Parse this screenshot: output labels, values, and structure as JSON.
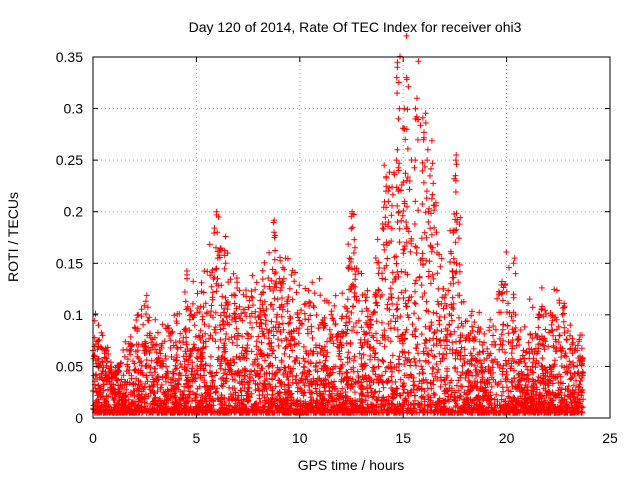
{
  "chart_data": {
    "type": "scatter",
    "title": "Day 120 of 2014, Rate Of TEC Index for receiver ohi3",
    "xlabel": "GPS time / hours",
    "ylabel": "ROTI / TECUs",
    "xlim": [
      0,
      25
    ],
    "ylim": [
      0,
      0.35
    ],
    "x_ticks": [
      "0",
      "5",
      "10",
      "15",
      "20",
      "25"
    ],
    "y_ticks": [
      "0",
      "0.05",
      "0.1",
      "0.15",
      "0.2",
      "0.25",
      "0.3",
      "0.35"
    ],
    "grid": true,
    "marker": "+",
    "color": "#ff0000",
    "series": [
      {
        "name": "ROTI",
        "points_per_hour": 200,
        "envelope_x": [
          0,
          0.3,
          1,
          2,
          2.5,
          3,
          4,
          4.5,
          5,
          5.5,
          6,
          6.5,
          7,
          8,
          8.8,
          9.5,
          10,
          11,
          12,
          12.5,
          13,
          13.5,
          14,
          14.5,
          14.8,
          15.2,
          15.8,
          16.5,
          17,
          17.6,
          18,
          19,
          20,
          20.5,
          21,
          22,
          23,
          23.7
        ],
        "envelope_y": [
          0.095,
          0.08,
          0.05,
          0.09,
          0.11,
          0.085,
          0.1,
          0.13,
          0.12,
          0.14,
          0.2,
          0.15,
          0.12,
          0.13,
          0.18,
          0.14,
          0.12,
          0.12,
          0.11,
          0.2,
          0.14,
          0.12,
          0.21,
          0.25,
          0.345,
          0.33,
          0.31,
          0.26,
          0.11,
          0.255,
          0.1,
          0.09,
          0.16,
          0.08,
          0.1,
          0.12,
          0.1,
          0.075
        ]
      }
    ],
    "spikes": [
      {
        "x": 14.75,
        "y": [
          0.345,
          0.34,
          0.33,
          0.315,
          0.3,
          0.29,
          0.26,
          0.25,
          0.24,
          0.22,
          0.2,
          0.19
        ]
      },
      {
        "x": 15.1,
        "y": [
          0.33,
          0.3,
          0.28,
          0.27,
          0.23,
          0.21,
          0.19
        ]
      },
      {
        "x": 15.6,
        "y": [
          0.31,
          0.3,
          0.29,
          0.25,
          0.21,
          0.16
        ]
      },
      {
        "x": 16.2,
        "y": [
          0.26,
          0.25,
          0.22,
          0.2,
          0.19
        ]
      },
      {
        "x": 17.6,
        "y": [
          0.255,
          0.25,
          0.235,
          0.23,
          0.19,
          0.15
        ]
      },
      {
        "x": 20.4,
        "y": [
          0.155,
          0.15,
          0.14,
          0.12,
          0.1
        ]
      },
      {
        "x": 6.0,
        "y": [
          0.2,
          0.195,
          0.165,
          0.155,
          0.145
        ]
      },
      {
        "x": 8.8,
        "y": [
          0.18,
          0.175,
          0.14,
          0.13
        ]
      },
      {
        "x": 12.6,
        "y": [
          0.2,
          0.185,
          0.165,
          0.16,
          0.145
        ]
      },
      {
        "x": 14.3,
        "y": [
          0.22,
          0.21,
          0.19,
          0.17
        ]
      }
    ]
  }
}
